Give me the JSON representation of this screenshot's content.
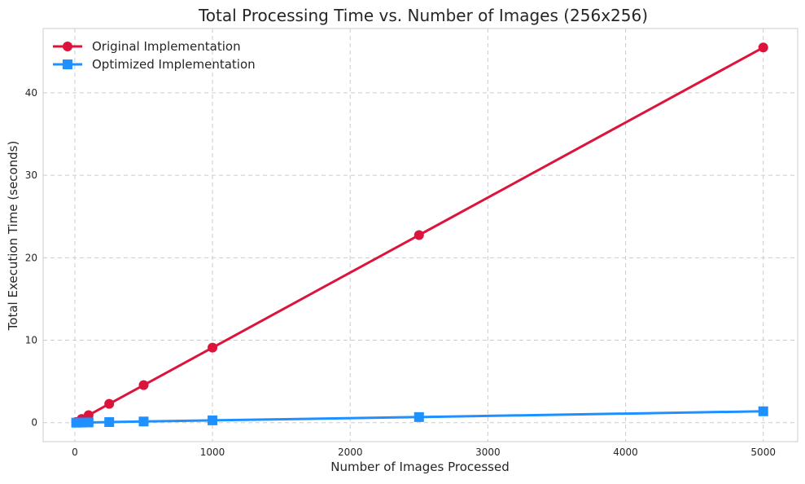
{
  "chart_data": {
    "type": "line",
    "title": "Total Processing Time vs. Number of Images (256x256)",
    "xlabel": "Number of Images Processed",
    "ylabel": "Total Execution Time (seconds)",
    "xlim": [
      -230,
      5250
    ],
    "ylim": [
      -2.3,
      47.8
    ],
    "xticks": [
      0,
      1000,
      2000,
      3000,
      4000,
      5000
    ],
    "yticks": [
      0,
      10,
      20,
      30,
      40
    ],
    "grid": true,
    "legend_position": "top-left",
    "series": [
      {
        "name": "Original Implementation",
        "color": "#dc143c",
        "marker": "circle",
        "x": [
          10,
          50,
          100,
          250,
          500,
          1000,
          2500,
          5000
        ],
        "y": [
          0.09,
          0.45,
          0.91,
          2.28,
          4.55,
          9.1,
          22.75,
          45.5
        ]
      },
      {
        "name": "Optimized Implementation",
        "color": "#1e90ff",
        "marker": "square",
        "x": [
          10,
          50,
          100,
          250,
          500,
          1000,
          2500,
          5000
        ],
        "y": [
          0.003,
          0.014,
          0.028,
          0.07,
          0.14,
          0.28,
          0.68,
          1.38
        ]
      }
    ]
  }
}
